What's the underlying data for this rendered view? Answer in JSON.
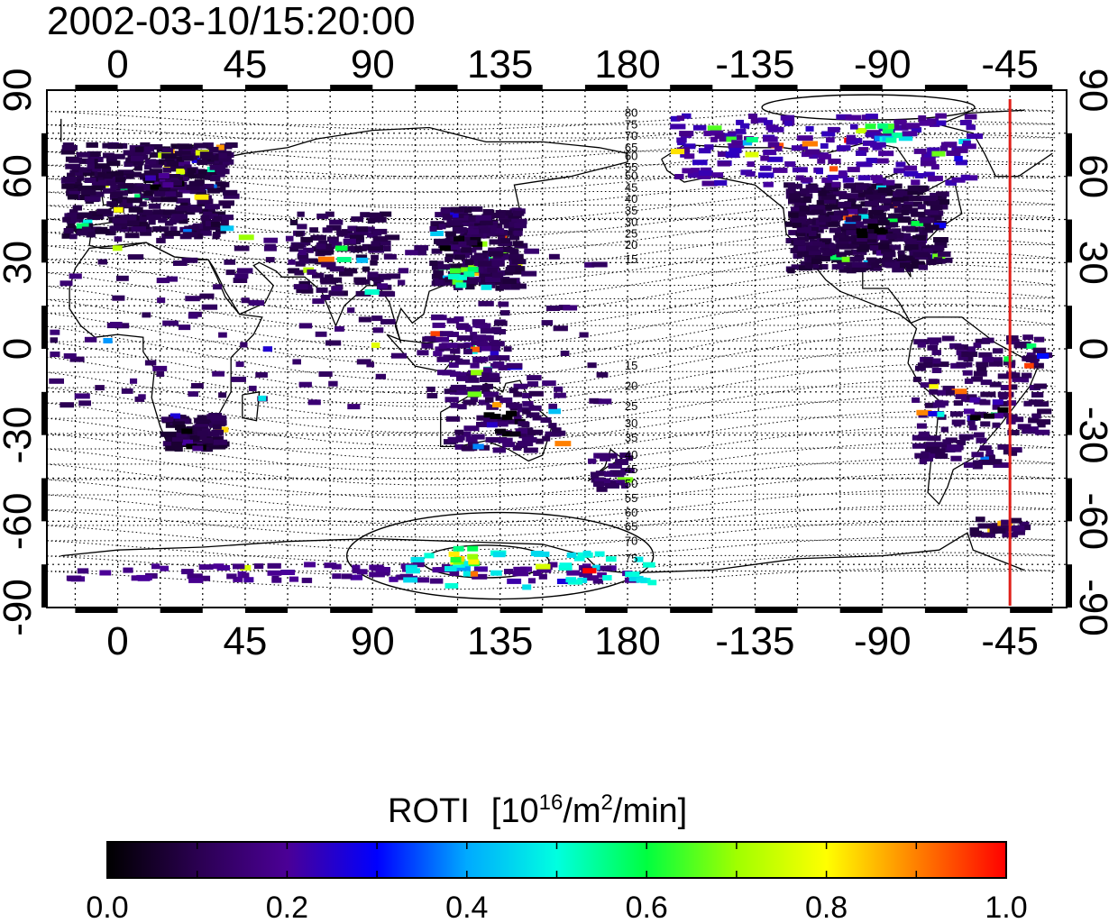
{
  "map": {
    "timestamp": "2002-03-10/15:20:00",
    "projection": "cylindrical equidistant, center 180",
    "lon_ticks_top": [
      "0",
      "45",
      "90",
      "135",
      "180",
      "-135",
      "-90",
      "-45"
    ],
    "lon_ticks_bottom": [
      "0",
      "45",
      "90",
      "135",
      "180",
      "-135",
      "-90",
      "-45"
    ],
    "lat_ticks_left": [
      "90",
      "60",
      "30",
      "0",
      "-30",
      "-60",
      "-90"
    ],
    "lat_ticks_right": [
      "90",
      "60",
      "30",
      "0",
      "-30",
      "-60",
      "-90"
    ],
    "lon_tick_values": [
      0,
      45,
      90,
      135,
      180,
      225,
      270,
      315
    ],
    "lat_tick_values": [
      90,
      60,
      30,
      0,
      -30,
      -60,
      -90
    ],
    "contour_labels_north": [
      "80",
      "75",
      "70",
      "65",
      "60",
      "55",
      "50",
      "45",
      "40",
      "35",
      "30",
      "25",
      "20",
      "15"
    ],
    "contour_labels_south": [
      "15",
      "20",
      "25",
      "30",
      "35",
      "40",
      "45",
      "50",
      "55",
      "60",
      "65",
      "70",
      "75"
    ],
    "meridian_line_lon": -45,
    "meridian_line_color": "#e0201a",
    "land_colors": {
      "coast": "#000000"
    },
    "roti_samples": [
      {
        "region": "europe",
        "lon": 15,
        "lat": 58,
        "level": 0.08
      },
      {
        "region": "north_china",
        "lon": 120,
        "lat": 38,
        "level": 0.08
      },
      {
        "region": "east_asia_hotspot",
        "lon": 123,
        "lat": 25,
        "level": 0.6
      },
      {
        "region": "north_america",
        "lon": -95,
        "lat": 42,
        "level": 0.08
      },
      {
        "region": "arctic_canada",
        "lon": -90,
        "lat": 75,
        "level": 0.5
      },
      {
        "region": "antarctic_edge",
        "lon": 120,
        "lat": -72,
        "level": 0.7
      },
      {
        "region": "south_america",
        "lon": -55,
        "lat": -20,
        "level": 0.1
      },
      {
        "region": "southern_africa",
        "lon": 25,
        "lat": -30,
        "level": 0.08
      },
      {
        "region": "australia",
        "lon": 135,
        "lat": -25,
        "level": 0.1
      }
    ]
  },
  "colorbar": {
    "title_prefix": "ROTI",
    "title_units_open": "[10",
    "title_units_exp": "16",
    "title_units_mid": "/m",
    "title_units_exp2": "2",
    "title_units_close": "/min]",
    "tick_labels": [
      "0.0",
      "0.2",
      "0.4",
      "0.6",
      "0.8",
      "1.0"
    ],
    "tick_values": [
      0.0,
      0.2,
      0.4,
      0.6,
      0.8,
      1.0
    ],
    "min": 0.0,
    "max": 1.0,
    "stops": [
      "#000000",
      "#2a0050",
      "#4b0096",
      "#0000ff",
      "#00aaff",
      "#00ffe0",
      "#00ff40",
      "#a0ff00",
      "#ffff00",
      "#ff8000",
      "#ff0000"
    ]
  }
}
